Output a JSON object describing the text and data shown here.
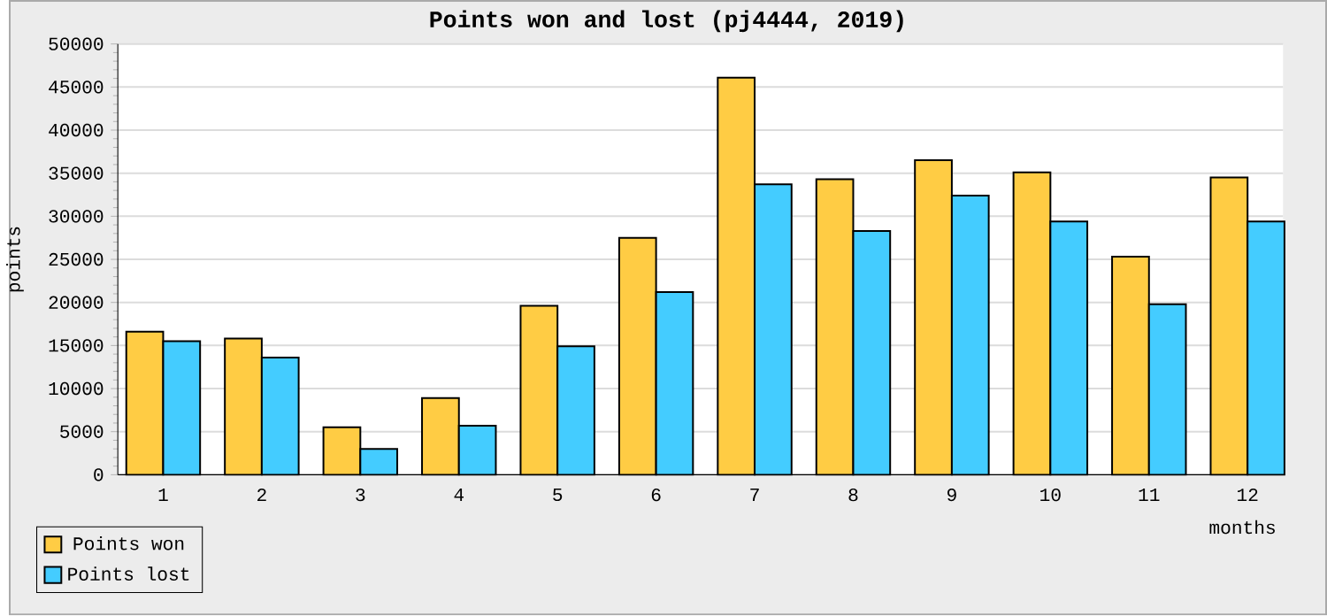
{
  "chart_data": {
    "type": "bar",
    "title": "Points won and lost (pj4444, 2019)",
    "xlabel": "months",
    "ylabel": "points",
    "categories": [
      "1",
      "2",
      "3",
      "4",
      "5",
      "6",
      "7",
      "8",
      "9",
      "10",
      "11",
      "12"
    ],
    "series": [
      {
        "name": "Points won",
        "color": "#ffcc44",
        "values": [
          16600,
          15800,
          5500,
          8900,
          19600,
          27500,
          46100,
          34300,
          36500,
          35100,
          25300,
          34500
        ]
      },
      {
        "name": "Points lost",
        "color": "#44ccff",
        "values": [
          15500,
          13600,
          3000,
          5700,
          14900,
          21200,
          33700,
          28300,
          32400,
          29400,
          19800,
          29400
        ]
      }
    ],
    "ylim": [
      0,
      50000
    ],
    "yticks": [
      0,
      5000,
      10000,
      15000,
      20000,
      25000,
      30000,
      35000,
      40000,
      45000,
      50000
    ],
    "grid": "y",
    "legend": "bottom left"
  }
}
